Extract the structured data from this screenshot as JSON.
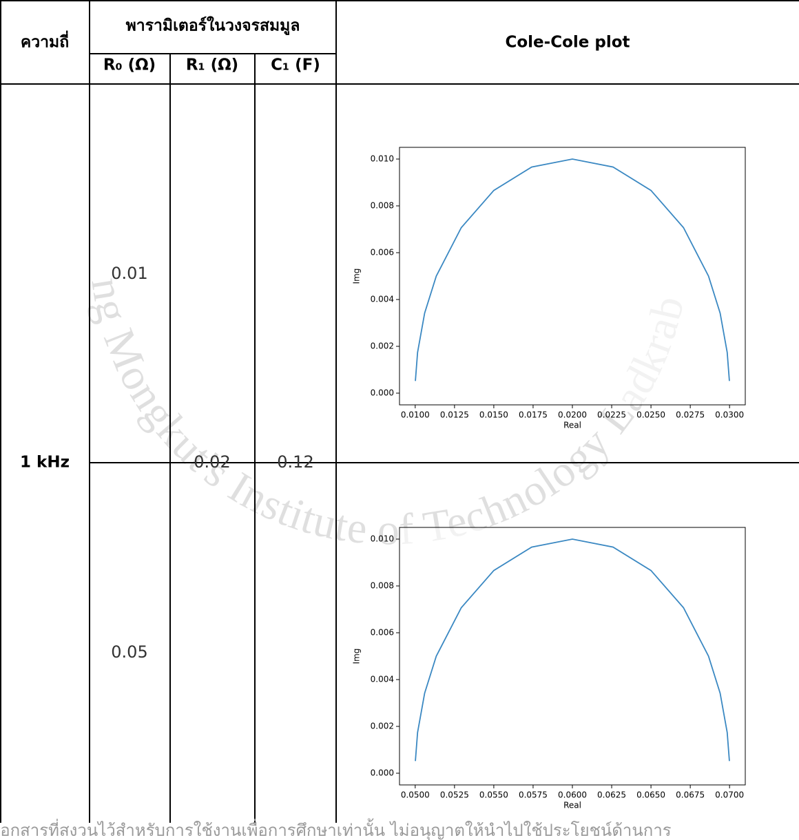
{
  "table": {
    "headers": {
      "frequency": "ความถี่",
      "parameters": "พารามิเตอร์ในวงจรสมมูล",
      "r0": "R₀ (Ω)",
      "r1": "R₁ (Ω)",
      "c1": "C₁ (F)",
      "plot": "Cole-Cole plot"
    },
    "frequency": "1 kHz",
    "r1": "0.02",
    "c1": "0.12",
    "rows": [
      {
        "r0": "0.01"
      },
      {
        "r0": "0.05"
      }
    ]
  },
  "chart_data": [
    {
      "type": "line",
      "xlabel": "Real",
      "ylabel": "Img",
      "color": "#3a88c2",
      "x": [
        0.01001,
        0.01015,
        0.0106,
        0.01134,
        0.01293,
        0.015,
        0.01741,
        0.02,
        0.02259,
        0.025,
        0.02707,
        0.02866,
        0.0294,
        0.02985,
        0.02999
      ],
      "values": [
        0.00052,
        0.00174,
        0.00342,
        0.005,
        0.00707,
        0.00866,
        0.00966,
        0.01,
        0.00966,
        0.00866,
        0.00707,
        0.005,
        0.00342,
        0.00174,
        0.00052
      ],
      "xlim": [
        0.009,
        0.031
      ],
      "ylim": [
        -0.0005,
        0.0105
      ],
      "xticks": [
        {
          "value": 0.01,
          "label": "0.0100"
        },
        {
          "value": 0.0125,
          "label": "0.0125"
        },
        {
          "value": 0.015,
          "label": "0.0150"
        },
        {
          "value": 0.0175,
          "label": "0.0175"
        },
        {
          "value": 0.02,
          "label": "0.0200"
        },
        {
          "value": 0.0225,
          "label": "0.0225"
        },
        {
          "value": 0.025,
          "label": "0.0250"
        },
        {
          "value": 0.0275,
          "label": "0.0275"
        },
        {
          "value": 0.03,
          "label": "0.0300"
        }
      ],
      "yticks": [
        {
          "value": 0,
          "label": "0.000"
        },
        {
          "value": 0.002,
          "label": "0.002"
        },
        {
          "value": 0.004,
          "label": "0.004"
        },
        {
          "value": 0.006,
          "label": "0.006"
        },
        {
          "value": 0.008,
          "label": "0.008"
        },
        {
          "value": 0.01,
          "label": "0.010"
        }
      ]
    },
    {
      "type": "line",
      "xlabel": "Real",
      "ylabel": "Img",
      "color": "#3a88c2",
      "x": [
        0.05001,
        0.05015,
        0.0506,
        0.05134,
        0.05293,
        0.055,
        0.05741,
        0.06,
        0.06259,
        0.065,
        0.06707,
        0.06866,
        0.0694,
        0.06985,
        0.06999
      ],
      "values": [
        0.00052,
        0.00174,
        0.00342,
        0.005,
        0.00707,
        0.00866,
        0.00966,
        0.01,
        0.00966,
        0.00866,
        0.00707,
        0.005,
        0.00342,
        0.00174,
        0.00052
      ],
      "xlim": [
        0.049,
        0.071
      ],
      "ylim": [
        -0.0005,
        0.0105
      ],
      "xticks": [
        {
          "value": 0.05,
          "label": "0.0500"
        },
        {
          "value": 0.0525,
          "label": "0.0525"
        },
        {
          "value": 0.055,
          "label": "0.0550"
        },
        {
          "value": 0.0575,
          "label": "0.0575"
        },
        {
          "value": 0.06,
          "label": "0.0600"
        },
        {
          "value": 0.0625,
          "label": "0.0625"
        },
        {
          "value": 0.065,
          "label": "0.0650"
        },
        {
          "value": 0.0675,
          "label": "0.0675"
        },
        {
          "value": 0.07,
          "label": "0.0700"
        }
      ],
      "yticks": [
        {
          "value": 0,
          "label": "0.000"
        },
        {
          "value": 0.002,
          "label": "0.002"
        },
        {
          "value": 0.004,
          "label": "0.004"
        },
        {
          "value": 0.006,
          "label": "0.006"
        },
        {
          "value": 0.008,
          "label": "0.008"
        },
        {
          "value": 0.01,
          "label": "0.010"
        }
      ]
    }
  ],
  "watermark": "King Mongkut's Institute of Technology Ladkrabang",
  "footer": "เอกสารที่สงวนไว้สำหรับการใช้งานเพื่อการศึกษาเท่านั้น ไม่อนุญาตให้นำไปใช้ประโยชน์ด้านการ"
}
